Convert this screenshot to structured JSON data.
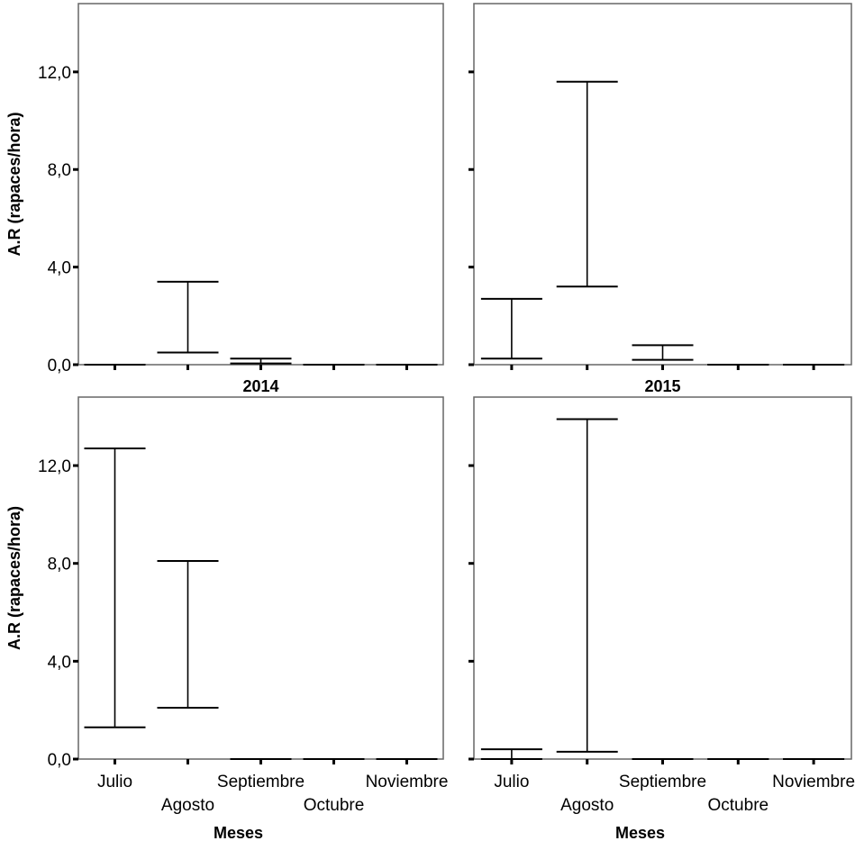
{
  "chart_data": {
    "type": "errorbar",
    "categories": [
      "Julio",
      "Agosto",
      "Septiembre",
      "Octubre",
      "Noviembre"
    ],
    "yticks": [
      "0,0",
      "4,0",
      "8,0",
      "12,0"
    ],
    "ylim": [
      0,
      14.8
    ],
    "ylabel": "A.R (rapaces/hora)",
    "xlabel": "Meses",
    "grid": false,
    "panels": [
      {
        "title": "",
        "column_label": "2014",
        "row": 0,
        "intervals": [
          {
            "category": "Julio",
            "low": 0.0,
            "high": 0.0
          },
          {
            "category": "Agosto",
            "low": 0.5,
            "high": 3.4
          },
          {
            "category": "Septiembre",
            "low": 0.05,
            "high": 0.25
          },
          {
            "category": "Octubre",
            "low": 0.0,
            "high": 0.0
          },
          {
            "category": "Noviembre",
            "low": 0.0,
            "high": 0.0
          }
        ]
      },
      {
        "title": "",
        "column_label": "2015",
        "row": 0,
        "intervals": [
          {
            "category": "Julio",
            "low": 0.25,
            "high": 2.7
          },
          {
            "category": "Agosto",
            "low": 3.2,
            "high": 11.6
          },
          {
            "category": "Septiembre",
            "low": 0.2,
            "high": 0.8
          },
          {
            "category": "Octubre",
            "low": 0.0,
            "high": 0.0
          },
          {
            "category": "Noviembre",
            "low": 0.0,
            "high": 0.0
          }
        ]
      },
      {
        "title": "",
        "column_label": "2014",
        "row": 1,
        "intervals": [
          {
            "category": "Julio",
            "low": 1.3,
            "high": 12.7
          },
          {
            "category": "Agosto",
            "low": 2.1,
            "high": 8.1
          },
          {
            "category": "Septiembre",
            "low": 0.0,
            "high": 0.0
          },
          {
            "category": "Octubre",
            "low": 0.0,
            "high": 0.0
          },
          {
            "category": "Noviembre",
            "low": 0.0,
            "high": 0.0
          }
        ]
      },
      {
        "title": "",
        "column_label": "2015",
        "row": 1,
        "intervals": [
          {
            "category": "Julio",
            "low": 0.0,
            "high": 0.4
          },
          {
            "category": "Agosto",
            "low": 0.3,
            "high": 13.9
          },
          {
            "category": "Septiembre",
            "low": 0.0,
            "high": 0.0
          },
          {
            "category": "Octubre",
            "low": 0.0,
            "high": 0.0
          },
          {
            "category": "Noviembre",
            "low": 0.0,
            "high": 0.0
          }
        ]
      }
    ]
  }
}
